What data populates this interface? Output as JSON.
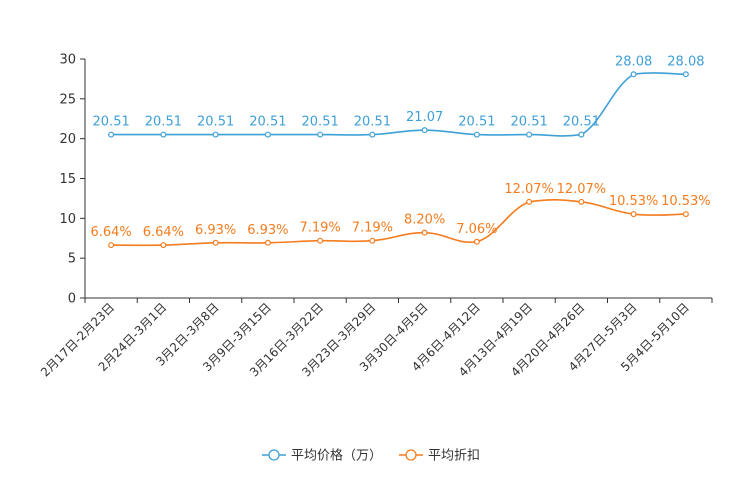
{
  "chart_data": {
    "type": "line",
    "categories": [
      "2月17日-2月23日",
      "2月24日-3月1日",
      "3月2日-3月8日",
      "3月9日-3月15日",
      "3月16日-3月22日",
      "3月23日-3月29日",
      "3月30日-4月5日",
      "4月6日-4月12日",
      "4月13日-4月19日",
      "4月20日-4月26日",
      "4月27日-5月3日",
      "5月4日-5月10日"
    ],
    "ylim": [
      0,
      30
    ],
    "yticks": [
      0,
      5,
      10,
      15,
      20,
      25,
      30
    ],
    "ytick_labels": [
      "0",
      "5",
      "10",
      "15",
      "20",
      "25",
      "30"
    ],
    "series": [
      {
        "name": "平均价格（万）",
        "color": "#3fa0d6",
        "values": [
          20.51,
          20.51,
          20.51,
          20.51,
          20.51,
          20.51,
          21.07,
          20.51,
          20.51,
          20.51,
          28.08,
          28.08
        ],
        "labels": [
          "20.51",
          "20.51",
          "20.51",
          "20.51",
          "20.51",
          "20.51",
          "21.07",
          "20.51",
          "20.51",
          "20.51",
          "28.08",
          "28.08"
        ]
      },
      {
        "name": "平均折扣",
        "color": "#f57c1f",
        "values": [
          6.64,
          6.64,
          6.93,
          6.93,
          7.19,
          7.19,
          8.2,
          7.06,
          12.07,
          12.07,
          10.53,
          10.53
        ],
        "labels": [
          "6.64%",
          "6.64%",
          "6.93%",
          "6.93%",
          "7.19%",
          "7.19%",
          "8.20%",
          "7.06%",
          "12.07%",
          "12.07%",
          "10.53%",
          "10.53%"
        ]
      }
    ],
    "legend_position": "bottom-center"
  }
}
